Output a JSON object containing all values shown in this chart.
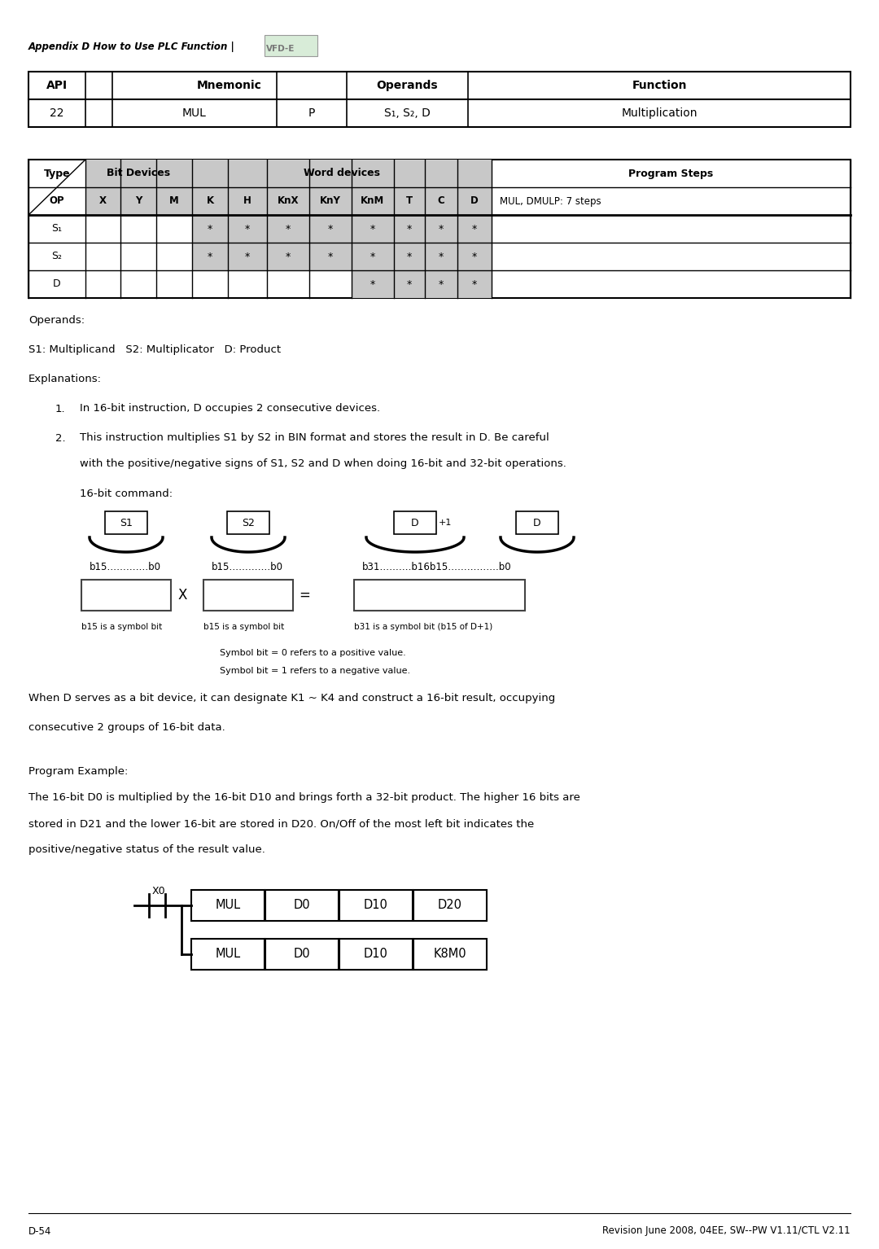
{
  "page_bg": "#ffffff",
  "header_italic": "Appendix D How to Use PLC Function |",
  "header_logo": "VFD-E",
  "operands_text": "Operands:",
  "s1_s2_d": "S1: Multiplicand   S2: Multiplicator   D: Product",
  "explanations_title": "Explanations:",
  "explanation_1": "In 16-bit instruction, D occupies 2 consecutive devices.",
  "explanation_2a": "This instruction multiplies S1 by S2 in BIN format and stores the result in D. Be careful",
  "explanation_2b": "with the positive/negative signs of S1, S2 and D when doing 16-bit and 32-bit operations.",
  "bit16_label": "16-bit command:",
  "symbol_note1": "Symbol bit = 0 refers to a positive value.",
  "symbol_note2": "Symbol bit = 1 refers to a negative value.",
  "when_d_text1": "When D serves as a bit device, it can designate K1 ~ K4 and construct a 16-bit result, occupying",
  "when_d_text2": "consecutive 2 groups of 16-bit data.",
  "program_example_title": "Program Example:",
  "program_example_text": "The 16-bit D0 is multiplied by the 16-bit D10 and brings forth a 32-bit product. The higher 16 bits are",
  "program_example_text2": "stored in D21 and the lower 16-bit are stored in D20. On/Off of the most left bit indicates the",
  "program_example_text3": "positive/negative status of the result value.",
  "ladder_rows": [
    [
      "MUL",
      "D0",
      "D10",
      "D20"
    ],
    [
      "MUL",
      "D0",
      "D10",
      "K8M0"
    ]
  ],
  "footer_left": "D-54",
  "footer_right": "Revision June 2008, 04EE, SW--PW V1.11/CTL V2.11",
  "grey": "#c8c8c8",
  "type_table_rows": [
    {
      "label": "S₁",
      "word_stars": [
        0,
        1,
        2,
        3,
        4,
        5,
        6,
        7
      ]
    },
    {
      "label": "S₂",
      "word_stars": [
        0,
        1,
        2,
        3,
        4,
        5,
        6,
        7
      ]
    },
    {
      "label": "D",
      "word_stars": [
        4,
        5,
        6,
        7
      ]
    }
  ]
}
